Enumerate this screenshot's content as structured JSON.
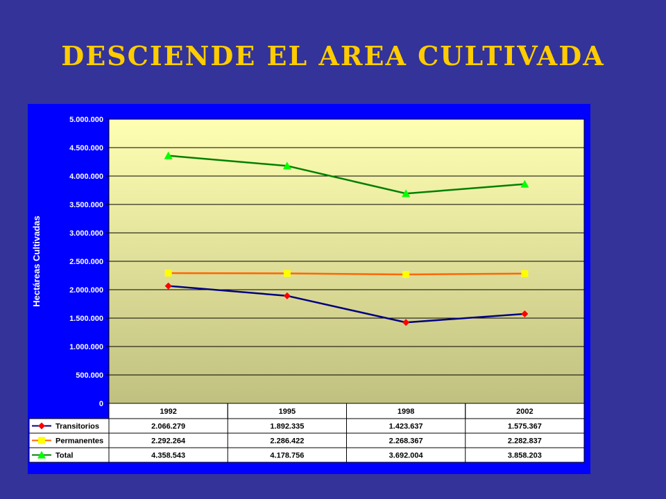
{
  "slide": {
    "title": "Desciende el AREA CULTIVADA"
  },
  "chart_data": {
    "type": "line",
    "title": "",
    "ylabel": "Hectáreas Cultivadas",
    "xlabel": "",
    "ylim": [
      0,
      5000000
    ],
    "yticks": [
      0,
      500000,
      1000000,
      1500000,
      2000000,
      2500000,
      3000000,
      3500000,
      4000000,
      4500000,
      5000000
    ],
    "ytick_labels": [
      "0",
      "500.000",
      "1.000.000",
      "1.500.000",
      "2.000.000",
      "2.500.000",
      "3.000.000",
      "3.500.000",
      "4.000.000",
      "4.500.000",
      "5.000.000"
    ],
    "categories": [
      "1992",
      "1995",
      "1998",
      "2002"
    ],
    "grid": true,
    "legend": "data-table",
    "series": [
      {
        "name": "Transitorios",
        "color": "#000080",
        "marker_color": "#FF0000",
        "marker": "diamond",
        "values": [
          2066279,
          1892335,
          1423637,
          1575367
        ],
        "labels": [
          "2.066.279",
          "1.892.335",
          "1.423.637",
          "1.575.367"
        ]
      },
      {
        "name": "Permanentes",
        "color": "#FF6600",
        "marker_color": "#FFFF00",
        "marker": "square",
        "values": [
          2292264,
          2286422,
          2268367,
          2282837
        ],
        "labels": [
          "2.292.264",
          "2.286.422",
          "2.268.367",
          "2.282.837"
        ]
      },
      {
        "name": "Total",
        "color": "#008000",
        "marker_color": "#00FF00",
        "marker": "triangle",
        "values": [
          4358543,
          4178756,
          3692004,
          3858203
        ],
        "labels": [
          "4.358.543",
          "4.178.756",
          "3.692.004",
          "3.858.203"
        ]
      }
    ]
  }
}
